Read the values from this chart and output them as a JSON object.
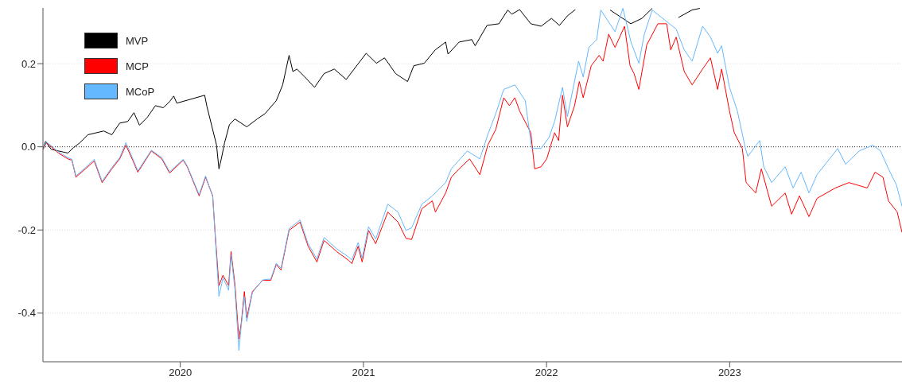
{
  "chart_data": {
    "type": "line",
    "xlim": [
      2019.25,
      2023.941
    ],
    "xticks": [
      2020,
      2021,
      2022,
      2023
    ],
    "ylim": [
      -0.517,
      0.334
    ],
    "yticks": [
      -0.4,
      -0.2,
      {
        "value": 0,
        "label": "0.0"
      },
      0.2
    ],
    "grid": "y",
    "legend": "top left",
    "line_style": "solid",
    "marker": "none",
    "ref_lines": [
      {
        "axis": "y",
        "value": 0,
        "color": "#333333",
        "line_style": "dotted"
      }
    ],
    "series": [
      {
        "name": "MVP",
        "color": "#000000",
        "x": [
          2019.251,
          2019.264,
          2019.295,
          2019.386,
          2019.417,
          2019.452,
          2019.495,
          2019.582,
          2019.626,
          2019.669,
          2019.713,
          2019.747,
          2019.777,
          2019.82,
          2019.864,
          2019.907,
          2019.942,
          2019.964,
          2019.981,
          2020.133,
          2020.146,
          2020.198,
          2020.211,
          2020.224,
          2020.242,
          2020.268,
          2020.298,
          2020.363,
          2020.42,
          2020.463,
          2020.524,
          2020.559,
          2020.594,
          2020.615,
          2020.637,
          2020.68,
          2020.733,
          2020.785,
          2020.841,
          2020.906,
          2021.015,
          2021.071,
          2021.115,
          2021.176,
          2021.241,
          2021.275,
          2021.332,
          2021.392,
          2021.449,
          2021.462,
          2021.523,
          2021.592,
          2021.61,
          2021.675,
          2021.74,
          2021.788,
          2021.81,
          2021.853,
          2021.914,
          2021.97,
          2022.027,
          2022.07,
          2022.114,
          2022.157,
          2022.2,
          2022.347,
          2022.46,
          2022.521,
          2022.577,
          2022.62,
          2022.72,
          2022.794,
          2022.837
        ],
        "values": [
          -0.006,
          0.013,
          -0.006,
          -0.015,
          -0.002,
          0.01,
          0.029,
          0.038,
          0.029,
          0.057,
          0.061,
          0.082,
          0.052,
          0.071,
          0.099,
          0.094,
          0.109,
          0.122,
          0.105,
          0.124,
          0.096,
          0.004,
          -0.053,
          -0.029,
          0.01,
          0.053,
          0.067,
          0.048,
          0.067,
          0.08,
          0.111,
          0.149,
          0.22,
          0.181,
          0.187,
          0.168,
          0.143,
          0.176,
          0.187,
          0.162,
          0.225,
          0.201,
          0.214,
          0.176,
          0.157,
          0.195,
          0.201,
          0.233,
          0.252,
          0.223,
          0.252,
          0.258,
          0.243,
          0.292,
          0.296,
          0.329,
          0.319,
          0.33,
          0.296,
          0.29,
          0.309,
          0.292,
          0.315,
          0.33,
          null,
          0.329,
          0.296,
          0.309,
          0.333,
          null,
          0.311,
          0.329,
          0.333
        ]
      },
      {
        "name": "MCP",
        "color": "#ff0000",
        "x": [
          2019.251,
          2019.269,
          2019.334,
          2019.386,
          2019.408,
          2019.43,
          2019.482,
          2019.53,
          2019.573,
          2019.626,
          2019.669,
          2019.703,
          2019.742,
          2019.768,
          2019.842,
          2019.899,
          2019.942,
          2020.016,
          2020.038,
          2020.103,
          2020.138,
          2020.177,
          2020.19,
          2020.211,
          2020.233,
          2020.264,
          2020.277,
          2020.298,
          2020.32,
          2020.333,
          2020.35,
          2020.363,
          2020.394,
          2020.45,
          2020.494,
          2020.524,
          2020.55,
          2020.594,
          2020.654,
          2020.698,
          2020.746,
          2020.785,
          2020.854,
          2020.919,
          2020.937,
          2020.971,
          2020.993,
          2021.028,
          2021.067,
          2021.133,
          2021.189,
          2021.232,
          2021.263,
          2021.319,
          2021.376,
          2021.393,
          2021.449,
          2021.48,
          2021.523,
          2021.58,
          2021.636,
          2021.679,
          2021.723,
          2021.766,
          2021.797,
          2021.827,
          2021.853,
          2021.914,
          2021.935,
          2021.97,
          2022.001,
          2022.044,
          2022.066,
          2022.087,
          2022.114,
          2022.153,
          2022.179,
          2022.2,
          2022.244,
          2022.287,
          2022.309,
          2022.339,
          2022.374,
          2022.426,
          2022.456,
          2022.478,
          2022.504,
          2022.547,
          2022.608,
          2022.656,
          2022.678,
          2022.708,
          2022.752,
          2022.795,
          2022.852,
          2022.895,
          2022.934,
          2022.956,
          2022.999,
          2023.025,
          2023.069,
          2023.09,
          2023.142,
          2023.173,
          2023.229,
          2023.303,
          2023.338,
          2023.381,
          2023.433,
          2023.477,
          2023.577,
          2023.651,
          2023.751,
          2023.794,
          2023.837,
          2023.867,
          2023.915,
          2023.941
        ],
        "values": [
          -0.006,
          0.01,
          -0.015,
          -0.029,
          -0.032,
          -0.073,
          -0.053,
          -0.034,
          -0.086,
          -0.053,
          -0.029,
          0.004,
          -0.034,
          -0.061,
          -0.01,
          -0.029,
          -0.063,
          -0.032,
          -0.048,
          -0.118,
          -0.073,
          -0.118,
          -0.206,
          -0.334,
          -0.309,
          -0.334,
          -0.252,
          -0.329,
          -0.462,
          -0.424,
          -0.348,
          -0.411,
          -0.348,
          -0.321,
          -0.321,
          -0.283,
          -0.296,
          -0.201,
          -0.181,
          -0.239,
          -0.277,
          -0.225,
          -0.252,
          -0.273,
          -0.281,
          -0.239,
          -0.277,
          -0.201,
          -0.233,
          -0.157,
          -0.181,
          -0.22,
          -0.223,
          -0.149,
          -0.13,
          -0.157,
          -0.111,
          -0.073,
          -0.053,
          -0.029,
          -0.067,
          0.004,
          0.042,
          0.118,
          0.099,
          0.118,
          0.086,
          0.034,
          -0.053,
          -0.048,
          -0.029,
          0.034,
          0.015,
          0.124,
          0.048,
          0.099,
          0.157,
          0.118,
          0.195,
          0.22,
          0.206,
          0.271,
          0.239,
          0.29,
          0.195,
          0.176,
          0.138,
          0.245,
          0.296,
          0.296,
          0.233,
          0.264,
          0.181,
          0.149,
          0.187,
          0.214,
          0.138,
          0.187,
          0.086,
          0.034,
          -0.004,
          -0.086,
          -0.111,
          -0.053,
          -0.143,
          -0.111,
          -0.162,
          -0.118,
          -0.168,
          -0.124,
          -0.099,
          -0.086,
          -0.099,
          -0.061,
          -0.073,
          -0.13,
          -0.157,
          -0.206
        ]
      },
      {
        "name": "MCoP",
        "color": "#63b8ff",
        "x": [
          2019.251,
          2019.269,
          2019.334,
          2019.386,
          2019.408,
          2019.43,
          2019.482,
          2019.53,
          2019.573,
          2019.626,
          2019.669,
          2019.703,
          2019.742,
          2019.768,
          2019.842,
          2019.899,
          2019.942,
          2020.016,
          2020.038,
          2020.103,
          2020.138,
          2020.177,
          2020.19,
          2020.211,
          2020.233,
          2020.264,
          2020.277,
          2020.298,
          2020.32,
          2020.333,
          2020.35,
          2020.363,
          2020.394,
          2020.45,
          2020.494,
          2020.524,
          2020.55,
          2020.594,
          2020.654,
          2020.698,
          2020.746,
          2020.785,
          2020.854,
          2020.919,
          2020.937,
          2020.971,
          2020.993,
          2021.028,
          2021.067,
          2021.133,
          2021.189,
          2021.232,
          2021.263,
          2021.319,
          2021.376,
          2021.449,
          2021.48,
          2021.567,
          2021.636,
          2021.679,
          2021.723,
          2021.766,
          2021.827,
          2021.884,
          2021.919,
          2021.97,
          2022.014,
          2022.044,
          2022.087,
          2022.114,
          2022.175,
          2022.2,
          2022.231,
          2022.274,
          2022.296,
          2022.374,
          2022.417,
          2022.461,
          2022.504,
          2022.534,
          2022.577,
          2022.708,
          2022.752,
          2022.795,
          2022.852,
          2022.895,
          2022.934,
          2022.956,
          2022.999,
          2023.042,
          2023.086,
          2023.099,
          2023.164,
          2023.186,
          2023.229,
          2023.303,
          2023.346,
          2023.39,
          2023.433,
          2023.477,
          2023.59,
          2023.633,
          2023.707,
          2023.781,
          2023.824,
          2023.867,
          2023.911,
          2023.941
        ],
        "values": [
          -0.004,
          0.012,
          -0.012,
          -0.026,
          -0.03,
          -0.07,
          -0.05,
          -0.03,
          -0.083,
          -0.05,
          -0.026,
          0.01,
          -0.03,
          -0.058,
          -0.008,
          -0.026,
          -0.06,
          -0.03,
          -0.046,
          -0.115,
          -0.07,
          -0.12,
          -0.21,
          -0.36,
          -0.315,
          -0.345,
          -0.26,
          -0.34,
          -0.49,
          -0.43,
          -0.36,
          -0.42,
          -0.35,
          -0.32,
          -0.318,
          -0.28,
          -0.292,
          -0.197,
          -0.176,
          -0.233,
          -0.27,
          -0.218,
          -0.245,
          -0.265,
          -0.272,
          -0.23,
          -0.268,
          -0.192,
          -0.222,
          -0.138,
          -0.157,
          -0.201,
          -0.195,
          -0.138,
          -0.118,
          -0.086,
          -0.053,
          -0.01,
          -0.029,
          0.029,
          0.08,
          0.138,
          0.149,
          0.111,
          -0.004,
          -0.004,
          0.023,
          0.061,
          0.143,
          0.073,
          0.206,
          0.168,
          0.239,
          0.258,
          0.329,
          0.277,
          0.333,
          0.252,
          0.201,
          0.271,
          0.329,
          0.283,
          0.233,
          0.206,
          0.29,
          0.264,
          0.225,
          0.243,
          0.143,
          0.086,
          -0.004,
          -0.023,
          0.015,
          -0.048,
          -0.086,
          -0.048,
          -0.099,
          -0.061,
          -0.111,
          -0.067,
          -0.004,
          -0.042,
          -0.01,
          0.004,
          -0.01,
          -0.053,
          -0.092,
          -0.143
        ]
      }
    ]
  }
}
